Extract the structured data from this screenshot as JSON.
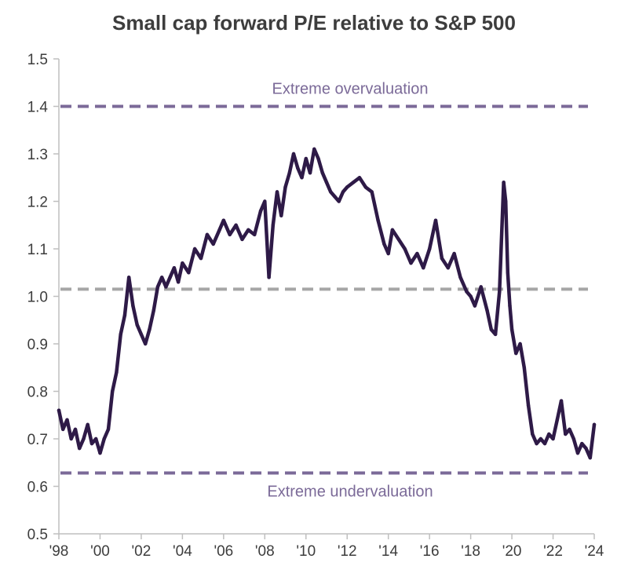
{
  "chart_data": {
    "type": "line",
    "title": "Small cap forward P/E relative to S&P 500",
    "xlabel": "",
    "ylabel": "",
    "xlim": [
      1998,
      2024
    ],
    "ylim": [
      0.5,
      1.5
    ],
    "yticks": [
      0.5,
      0.6,
      0.7,
      0.8,
      0.9,
      1.0,
      1.1,
      1.2,
      1.3,
      1.4,
      1.5
    ],
    "ytick_labels": [
      "0.5",
      "0.6",
      "0.7",
      "0.8",
      "0.9",
      "1.0",
      "1.1",
      "1.2",
      "1.3",
      "1.4",
      "1.5"
    ],
    "xticks": [
      1998,
      2000,
      2002,
      2004,
      2006,
      2008,
      2010,
      2012,
      2014,
      2016,
      2018,
      2020,
      2022,
      2024
    ],
    "xtick_labels": [
      "'98",
      "'00",
      "'02",
      "'04",
      "'06",
      "'08",
      "'10",
      "'12",
      "'14",
      "'16",
      "'18",
      "'20",
      "'22",
      "'24"
    ],
    "series": [
      {
        "name": "Small cap forward P/E relative to S&P 500",
        "color": "#2e1a47",
        "x": [
          1998.0,
          1998.2,
          1998.4,
          1998.6,
          1998.8,
          1999.0,
          1999.2,
          1999.4,
          1999.6,
          1999.8,
          2000.0,
          2000.2,
          2000.4,
          2000.6,
          2000.8,
          2001.0,
          2001.2,
          2001.4,
          2001.6,
          2001.8,
          2002.0,
          2002.2,
          2002.4,
          2002.6,
          2002.8,
          2003.0,
          2003.2,
          2003.4,
          2003.6,
          2003.8,
          2004.0,
          2004.3,
          2004.6,
          2004.9,
          2005.2,
          2005.5,
          2005.8,
          2006.0,
          2006.3,
          2006.6,
          2006.9,
          2007.2,
          2007.5,
          2007.8,
          2008.0,
          2008.2,
          2008.4,
          2008.6,
          2008.8,
          2009.0,
          2009.2,
          2009.4,
          2009.6,
          2009.8,
          2010.0,
          2010.2,
          2010.4,
          2010.6,
          2010.8,
          2011.0,
          2011.2,
          2011.4,
          2011.6,
          2011.8,
          2012.0,
          2012.3,
          2012.6,
          2012.9,
          2013.2,
          2013.5,
          2013.8,
          2014.0,
          2014.2,
          2014.5,
          2014.8,
          2015.1,
          2015.4,
          2015.7,
          2016.0,
          2016.3,
          2016.6,
          2016.9,
          2017.2,
          2017.5,
          2017.8,
          2018.0,
          2018.2,
          2018.5,
          2018.8,
          2019.0,
          2019.2,
          2019.4,
          2019.6,
          2019.7,
          2019.8,
          2019.9,
          2020.0,
          2020.2,
          2020.4,
          2020.6,
          2020.8,
          2021.0,
          2021.2,
          2021.4,
          2021.6,
          2021.8,
          2022.0,
          2022.2,
          2022.4,
          2022.6,
          2022.8,
          2023.0,
          2023.2,
          2023.4,
          2023.6,
          2023.8,
          2024.0
        ],
        "values": [
          0.76,
          0.72,
          0.74,
          0.7,
          0.72,
          0.68,
          0.7,
          0.73,
          0.69,
          0.7,
          0.67,
          0.7,
          0.72,
          0.8,
          0.84,
          0.92,
          0.96,
          1.04,
          0.98,
          0.94,
          0.92,
          0.9,
          0.93,
          0.97,
          1.02,
          1.04,
          1.02,
          1.04,
          1.06,
          1.03,
          1.07,
          1.05,
          1.1,
          1.08,
          1.13,
          1.11,
          1.14,
          1.16,
          1.13,
          1.15,
          1.12,
          1.14,
          1.13,
          1.18,
          1.2,
          1.04,
          1.15,
          1.22,
          1.17,
          1.23,
          1.26,
          1.3,
          1.27,
          1.25,
          1.29,
          1.26,
          1.31,
          1.29,
          1.26,
          1.24,
          1.22,
          1.21,
          1.2,
          1.22,
          1.23,
          1.24,
          1.25,
          1.23,
          1.22,
          1.16,
          1.11,
          1.09,
          1.14,
          1.12,
          1.1,
          1.07,
          1.09,
          1.06,
          1.1,
          1.16,
          1.08,
          1.06,
          1.09,
          1.04,
          1.01,
          1.0,
          0.98,
          1.02,
          0.97,
          0.93,
          0.92,
          1.01,
          1.24,
          1.2,
          1.05,
          0.98,
          0.93,
          0.88,
          0.9,
          0.85,
          0.77,
          0.71,
          0.69,
          0.7,
          0.69,
          0.71,
          0.7,
          0.74,
          0.78,
          0.71,
          0.72,
          0.7,
          0.67,
          0.69,
          0.68,
          0.66,
          0.73
        ]
      }
    ],
    "reference_lines": [
      {
        "label": "Extreme overvaluation",
        "value": 1.4,
        "color": "#7b6a98",
        "label_position": "above"
      },
      {
        "label": "",
        "value": 1.015,
        "color": "#a6a6a6",
        "label_position": "none"
      },
      {
        "label": "Extreme undervaluation",
        "value": 0.628,
        "color": "#7b6a98",
        "label_position": "below"
      }
    ],
    "grid": false,
    "legend": "none"
  }
}
